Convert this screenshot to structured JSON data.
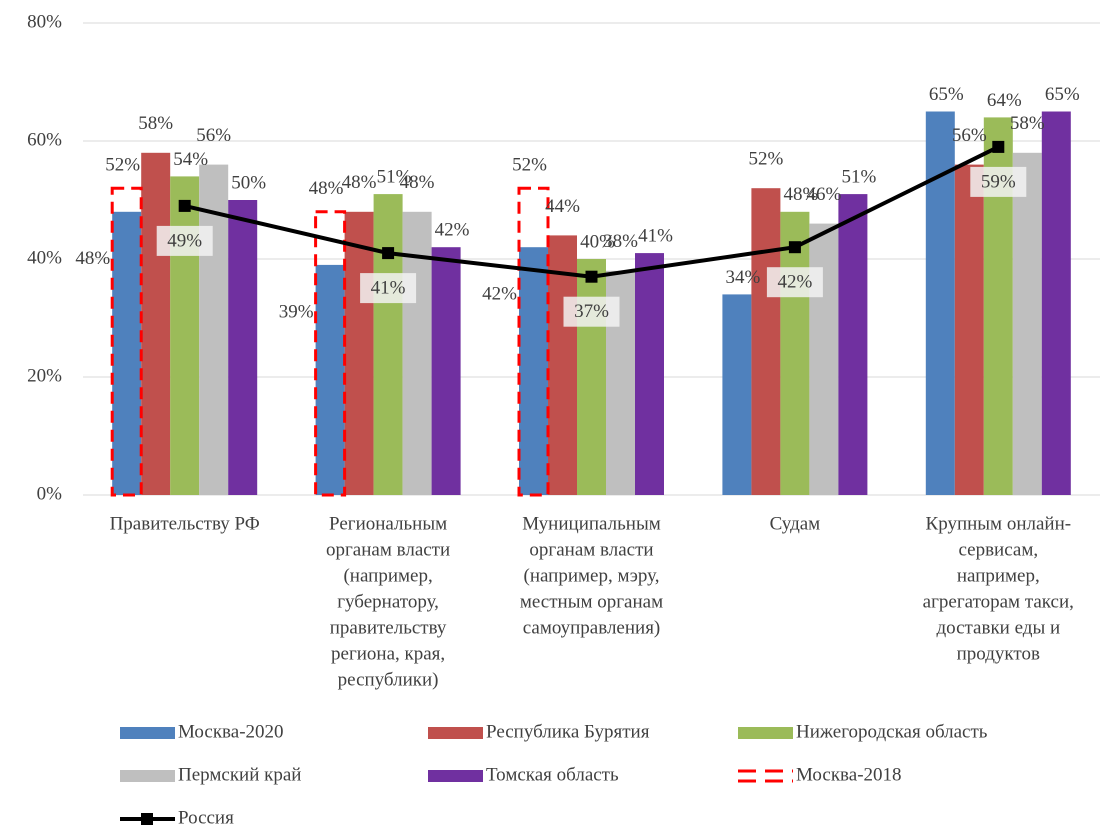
{
  "chart_data": {
    "type": "bar",
    "categories": [
      [
        "Правительству РФ"
      ],
      [
        "Региональным",
        "органам власти",
        "(например,",
        "губернатору,",
        "правительству",
        "региона, края,",
        "республики)"
      ],
      [
        "Муниципальным",
        "органам власти",
        "(например, мэру,",
        "местным органам",
        "самоуправления)"
      ],
      [
        "Судам"
      ],
      [
        "Крупным онлайн-",
        "сервисам,",
        "например,",
        "агрегаторам такси,",
        "доставки еды и",
        "продуктов"
      ]
    ],
    "series": [
      {
        "name": "Москва-2020",
        "color": "#4f81bd",
        "values": [
          48,
          39,
          42,
          34,
          65
        ],
        "value_labels": [
          "48%",
          "39%",
          "42%",
          "34%",
          "65%"
        ]
      },
      {
        "name": "Республика Бурятия",
        "color": "#c0504d",
        "values": [
          58,
          48,
          44,
          52,
          56
        ],
        "value_labels": [
          "58%",
          "48%",
          "44%",
          "52%",
          "56%"
        ]
      },
      {
        "name": "Нижегородская область",
        "color": "#9bbb59",
        "values": [
          54,
          51,
          40,
          48,
          64
        ],
        "value_labels": [
          "54%",
          "51%",
          "40%",
          "48%",
          "64%"
        ]
      },
      {
        "name": "Пермский край",
        "color": "#bfbfbf",
        "values": [
          56,
          48,
          38,
          46,
          58
        ],
        "value_labels": [
          "56%",
          "48%",
          "38%",
          "46%",
          "58%"
        ]
      },
      {
        "name": "Томская область",
        "color": "#7030a0",
        "values": [
          50,
          42,
          41,
          51,
          65
        ],
        "value_labels": [
          "50%",
          "42%",
          "41%",
          "51%",
          "65%"
        ]
      },
      {
        "name": "Москва-2018",
        "color": "#ff0000",
        "style": "dashed",
        "values": [
          52,
          48,
          52,
          null,
          null
        ],
        "value_labels": [
          "52%",
          "48%",
          "52%",
          null,
          null
        ]
      },
      {
        "name": "Россия",
        "color": "#000000",
        "style": "line",
        "values": [
          49,
          41,
          37,
          42,
          59
        ],
        "value_labels": [
          "49%",
          "41%",
          "37%",
          "42%",
          "59%"
        ]
      }
    ],
    "ylim": [
      0,
      80
    ],
    "yticks": [
      {
        "value": 0,
        "label": "0%"
      },
      {
        "value": 20,
        "label": "20%"
      },
      {
        "value": 40,
        "label": "40%"
      },
      {
        "value": 60,
        "label": "60%"
      },
      {
        "value": 80,
        "label": "80%"
      }
    ],
    "grid": true
  }
}
